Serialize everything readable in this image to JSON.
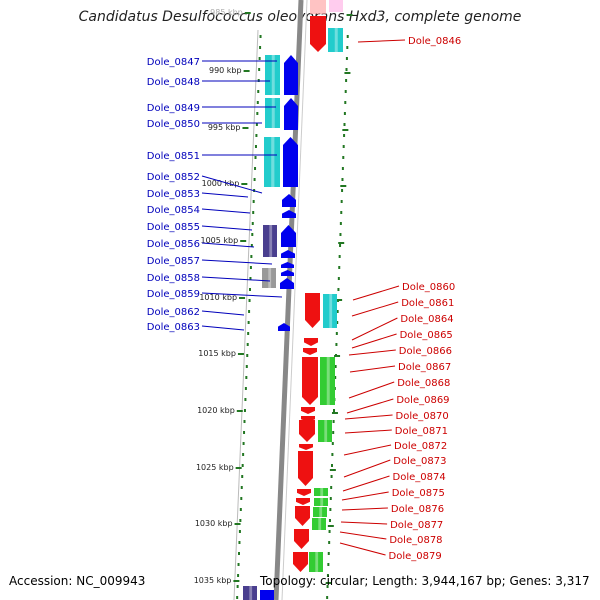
{
  "title": "Candidatus Desulfococcus oleovorans Hxd3, complete genome",
  "footer": {
    "accession": "Accession: NC_009943",
    "topology": "Topology: circular; Length: 3,944,167 bp; Genes: 3,317"
  },
  "colors": {
    "left_label": "#0000bb",
    "right_label": "#cc0000",
    "gene_blue": "#0000ee",
    "gene_red": "#ee1111",
    "cyan": "#22cccc",
    "green": "#33cc33",
    "purple": "#4a3f8f",
    "gray": "#999999",
    "tick_green": "#227722",
    "backbone": "#888888"
  },
  "kbp_ticks": [
    "985 kbp",
    "990 kbp",
    "995 kbp",
    "1000 kbp",
    "1005 kbp",
    "1010 kbp",
    "1015 kbp",
    "1020 kbp",
    "1025 kbp",
    "1030 kbp",
    "1035 kbp"
  ],
  "left_genes": [
    "Dole_0847",
    "Dole_0848",
    "Dole_0849",
    "Dole_0850",
    "Dole_0851",
    "Dole_0852",
    "Dole_0853",
    "Dole_0854",
    "Dole_0855",
    "Dole_0856",
    "Dole_0857",
    "Dole_0858",
    "Dole_0859",
    "Dole_0862",
    "Dole_0863"
  ],
  "right_genes": [
    "Dole_0846",
    "Dole_0860",
    "Dole_0861",
    "Dole_0864",
    "Dole_0865",
    "Dole_0866",
    "Dole_0867",
    "Dole_0868",
    "Dole_0869",
    "Dole_0870",
    "Dole_0871",
    "Dole_0872",
    "Dole_0873",
    "Dole_0874",
    "Dole_0875",
    "Dole_0876",
    "Dole_0877",
    "Dole_0878",
    "Dole_0879"
  ]
}
